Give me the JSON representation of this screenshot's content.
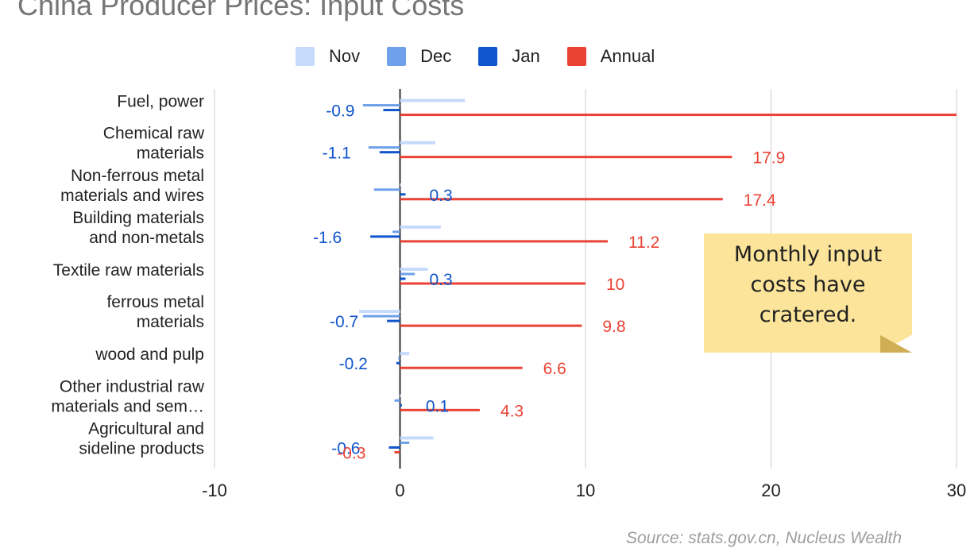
{
  "chart_data": {
    "type": "bar",
    "orientation": "horizontal",
    "title": "China Producer Prices: Input Costs",
    "categories": [
      [
        "Fuel, power"
      ],
      [
        "Chemical raw",
        "materials"
      ],
      [
        "Non-ferrous metal",
        "materials and wires"
      ],
      [
        "Building materials",
        "and non-metals"
      ],
      [
        "Textile raw materials"
      ],
      [
        "ferrous metal",
        "materials"
      ],
      [
        "wood and pulp"
      ],
      [
        "Other industrial raw",
        "materials and sem…"
      ],
      [
        "Agricultural and",
        "sideline products"
      ]
    ],
    "series": [
      {
        "name": "Nov",
        "color": "#c6dafc",
        "values": [
          3.5,
          1.9,
          0.0,
          2.2,
          1.5,
          -2.2,
          0.5,
          0.0,
          1.8
        ]
      },
      {
        "name": "Dec",
        "color": "#6fa0ea",
        "values": [
          -2.0,
          -1.7,
          -1.4,
          -0.4,
          0.8,
          -2.0,
          -0.1,
          -0.3,
          0.5
        ]
      },
      {
        "name": "Jan",
        "color": "#1155cc",
        "values": [
          -0.9,
          -1.1,
          0.3,
          -1.6,
          0.3,
          -0.7,
          -0.2,
          0.1,
          -0.6
        ]
      },
      {
        "name": "Annual",
        "color": "#ea4335",
        "values": [
          30.0,
          17.9,
          17.4,
          11.2,
          10,
          9.8,
          6.6,
          4.3,
          -0.3
        ]
      }
    ],
    "data_labels": {
      "Jan": [
        "-0.9",
        "-1.1",
        "0.3",
        "-1.6",
        "0.3",
        "-0.7",
        "-0.2",
        "0.1",
        "-0.6"
      ],
      "Annual": [
        "",
        "17.9",
        "17.4",
        "11.2",
        "10",
        "9.8",
        "6.6",
        "4.3",
        "-0.3"
      ]
    },
    "xlim": [
      -10,
      30
    ],
    "xticks": [
      "-10",
      "0",
      "10",
      "20",
      "30"
    ],
    "grid": "vertical",
    "legend_position": "top"
  },
  "annotation": {
    "lines": [
      "Monthly input",
      "costs have",
      "cratered."
    ]
  },
  "source": "Source: stats.gov.cn, Nucleus Wealth"
}
